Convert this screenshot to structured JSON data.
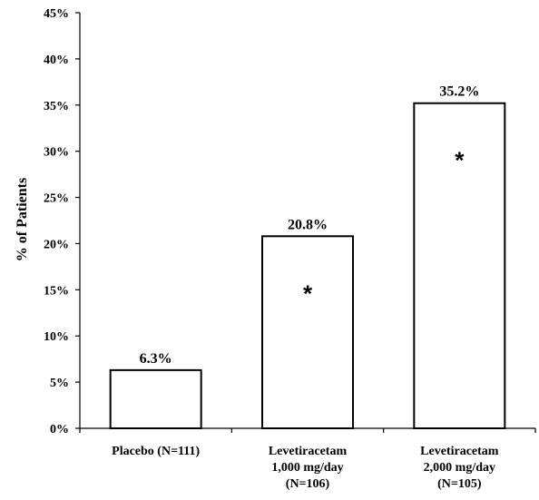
{
  "chart_data": {
    "type": "bar",
    "categories": [
      [
        "Placebo (N=111)"
      ],
      [
        "Levetiracetam",
        "1,000 mg/day",
        "(N=106)"
      ],
      [
        "Levetiracetam",
        "2,000 mg/day",
        "(N=105)"
      ]
    ],
    "values": [
      6.3,
      20.8,
      35.2
    ],
    "data_labels": [
      "6.3%",
      "20.8%",
      "35.2%"
    ],
    "markers": [
      "",
      "*",
      "*"
    ],
    "ylabel": "% of Patients",
    "ylim": [
      0,
      45
    ],
    "yticks": [
      0,
      5,
      10,
      15,
      20,
      25,
      30,
      35,
      40,
      45
    ],
    "ytick_labels": [
      "0%",
      "5%",
      "10%",
      "15%",
      "20%",
      "25%",
      "30%",
      "35%",
      "40%",
      "45%"
    ],
    "grid": false,
    "legend": "none",
    "colors": {
      "bar_fill": "#ffffff",
      "bar_stroke": "#000000",
      "axis": "#000000"
    }
  }
}
